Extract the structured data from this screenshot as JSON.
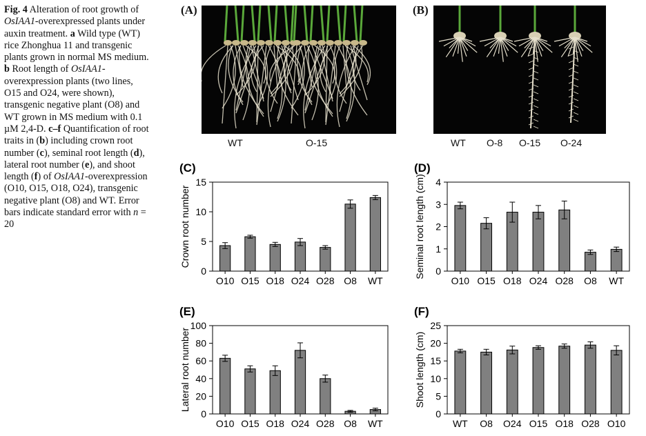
{
  "caption": {
    "fig_label": "Fig. 4",
    "runs": [
      {
        "t": " Alteration of root growth of "
      },
      {
        "t": "OsIAA1",
        "i": true
      },
      {
        "t": "-overexpressed plants under auxin treatment. "
      },
      {
        "t": "a",
        "b": true
      },
      {
        "t": " Wild type (WT) rice Zhonghua 11 and transgenic plants grown in normal MS medium. "
      },
      {
        "t": "b",
        "b": true
      },
      {
        "t": " Root length of "
      },
      {
        "t": "OsIAA1",
        "i": true
      },
      {
        "t": "-overexpression plants (two lines, O15 and O24, were shown), transgenic negative plant (O8) and WT grown in MS medium with 0.1 µM 2,4-D. "
      },
      {
        "t": "c–f",
        "b": true
      },
      {
        "t": " Quantification of root traits in ("
      },
      {
        "t": "b",
        "b": true
      },
      {
        "t": ") including crown root number ("
      },
      {
        "t": "c",
        "b": true
      },
      {
        "t": "), seminal root length ("
      },
      {
        "t": "d",
        "b": true
      },
      {
        "t": "), lateral root number ("
      },
      {
        "t": "e",
        "b": true
      },
      {
        "t": "), and shoot length ("
      },
      {
        "t": "f",
        "b": true
      },
      {
        "t": ") of "
      },
      {
        "t": "OsIAA1",
        "i": true
      },
      {
        "t": "-overexpression (O10, O15, O18, O24), transgenic negative plant (O8) and WT. Error bars indicate standard error with "
      },
      {
        "t": "n",
        "i": true
      },
      {
        "t": " = 20"
      }
    ]
  },
  "panel_a": {
    "letter": "(A)",
    "labels": [
      "WT",
      "O-15"
    ]
  },
  "panel_b": {
    "letter": "(B)",
    "labels": [
      "WT",
      "O-8",
      "O-15",
      "O-24"
    ]
  },
  "colors": {
    "bar": "#808080",
    "axis": "#000000",
    "photo_bg": "#050505",
    "root": "#e6e0cc",
    "shoot": "#5aa83a"
  },
  "chart_data": [
    {
      "id": "C",
      "letter": "(C)",
      "type": "bar",
      "ylabel": "Crown root number",
      "xlabel": "",
      "categories": [
        "O10",
        "O15",
        "O18",
        "O24",
        "O28",
        "O8",
        "WT"
      ],
      "values": [
        4.3,
        5.8,
        4.5,
        4.9,
        4.0,
        11.3,
        12.4
      ],
      "errors": [
        0.5,
        0.25,
        0.35,
        0.6,
        0.3,
        0.7,
        0.35
      ],
      "ylim": [
        0,
        15
      ],
      "yticks": [
        0,
        5,
        10,
        15
      ],
      "grid": false
    },
    {
      "id": "D",
      "letter": "(D)",
      "type": "bar",
      "ylabel": "Seminal root length (cm)",
      "xlabel": "",
      "categories": [
        "O10",
        "O15",
        "O18",
        "O24",
        "O28",
        "O8",
        "WT"
      ],
      "values": [
        2.95,
        2.15,
        2.65,
        2.65,
        2.75,
        0.85,
        0.98
      ],
      "errors": [
        0.15,
        0.25,
        0.45,
        0.3,
        0.4,
        0.1,
        0.1
      ],
      "ylim": [
        0,
        4
      ],
      "yticks": [
        0,
        1,
        2,
        3,
        4
      ],
      "grid": false
    },
    {
      "id": "E",
      "letter": "(E)",
      "type": "bar",
      "ylabel": "Lateral root number",
      "xlabel": "",
      "categories": [
        "O10",
        "O15",
        "O18",
        "O24",
        "O28",
        "O8",
        "WT"
      ],
      "values": [
        63,
        51,
        49,
        72,
        40,
        3,
        5
      ],
      "errors": [
        3.5,
        3.5,
        5.5,
        8.5,
        4,
        1,
        1.5
      ],
      "ylim": [
        0,
        100
      ],
      "yticks": [
        0,
        20,
        40,
        60,
        80,
        100
      ],
      "grid": false
    },
    {
      "id": "F",
      "letter": "(F)",
      "type": "bar",
      "ylabel": "Shoot length (cm)",
      "xlabel": "",
      "categories": [
        "WT",
        "O8",
        "O24",
        "O15",
        "O18",
        "O28",
        "O10"
      ],
      "values": [
        17.8,
        17.5,
        18.1,
        18.8,
        19.2,
        19.5,
        18.0
      ],
      "errors": [
        0.5,
        0.8,
        1.1,
        0.5,
        0.6,
        0.9,
        1.3
      ],
      "ylim": [
        0,
        25
      ],
      "yticks": [
        0,
        5,
        10,
        15,
        20,
        25
      ],
      "grid": false
    }
  ]
}
